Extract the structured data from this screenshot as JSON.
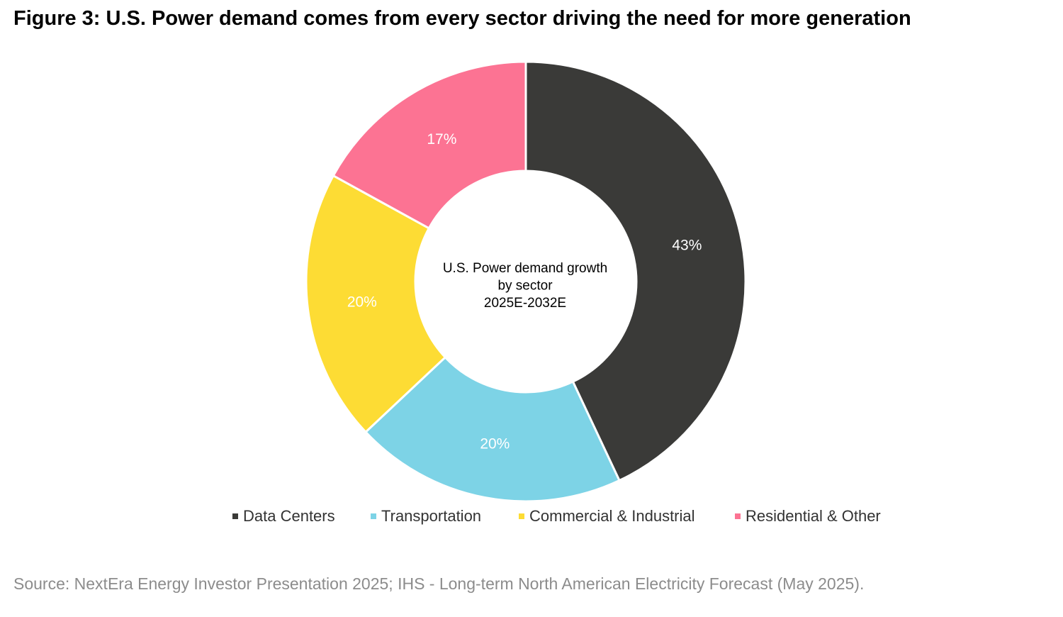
{
  "figure": {
    "title": "Figure 3: U.S. Power demand comes from every sector driving the need for more generation",
    "source": "Source: NextEra Energy Investor Presentation 2025; IHS - Long-term North American Electricity Forecast (May 2025)."
  },
  "chart_data": {
    "type": "pie",
    "variant": "donut",
    "center_label": [
      "U.S. Power demand growth",
      "by sector",
      "2025E-2032E"
    ],
    "categories": [
      "Data Centers",
      "Transportation",
      "Commercial & Industrial",
      "Residential & Other"
    ],
    "values": [
      43,
      20,
      20,
      17
    ],
    "data_labels": [
      "43%",
      "20%",
      "20%",
      "17%"
    ],
    "colors": [
      "#3a3a38",
      "#7dd3e6",
      "#fddc34",
      "#fc7393"
    ],
    "label_colors": [
      "#ffffff",
      "#ffffff",
      "#ffffff",
      "#ffffff"
    ],
    "start_angle": "12 o'clock",
    "direction": "clockwise",
    "legend": "bottom"
  }
}
